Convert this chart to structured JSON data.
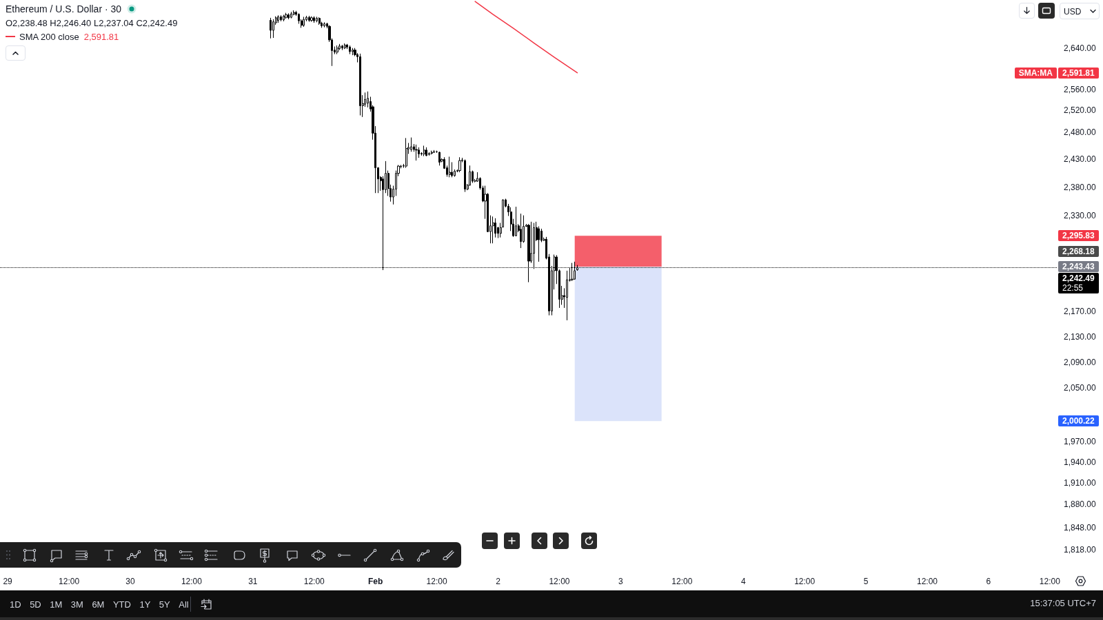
{
  "chart_data": {
    "type": "candlestick",
    "title": "Ethereum / U.S. Dollar · 30",
    "series": [
      {
        "color": "#000000",
        "x": [
          "--01-31T03:30",
          "--01-31T04:00",
          "--01-31T04:30",
          "--01-31T05:00",
          "--01-31T05:30",
          "--01-31T06:00",
          "--01-31T06:30",
          "--01-31T07:00",
          "--01-31T07:30",
          "--01-31T08:00",
          "--01-31T08:30",
          "--01-31T09:00",
          "--01-31T09:30",
          "--01-31T10:00",
          "--01-31T10:30",
          "--01-31T11:00",
          "--01-31T11:30",
          "--01-31T12:00",
          "--01-31T12:30",
          "--01-31T13:00",
          "--01-31T13:30",
          "--01-31T14:00",
          "--01-31T14:30",
          "--01-31T15:00",
          "--01-31T15:30",
          "--01-31T16:00",
          "--01-31T16:30",
          "--01-31T17:00",
          "--01-31T17:30",
          "--01-31T18:00",
          "--01-31T18:30",
          "--01-31T19:00",
          "--01-31T19:30",
          "--01-31T20:00",
          "--01-31T20:30",
          "--01-31T21:00",
          "--01-31T21:30",
          "--01-31T22:00",
          "--01-31T22:30",
          "--01-31T23:00",
          "--01-31T23:30",
          "--02-01T00:00",
          "--02-01T00:30",
          "--02-01T01:00",
          "--02-01T01:30",
          "--02-01T02:00",
          "--02-01T02:30",
          "--02-01T03:00",
          "--02-01T03:30",
          "--02-01T04:00",
          "--02-01T04:30",
          "--02-01T05:00",
          "--02-01T05:30",
          "--02-01T06:00",
          "--02-01T06:30",
          "--02-01T07:00",
          "--02-01T07:30",
          "--02-01T08:00",
          "--02-01T08:30",
          "--02-01T09:00",
          "--02-01T09:30",
          "--02-01T10:00",
          "--02-01T10:30",
          "--02-01T11:00",
          "--02-01T11:30",
          "--02-01T12:00",
          "--02-01T12:30",
          "--02-01T13:00",
          "--02-01T13:30",
          "--02-01T14:00",
          "--02-01T14:30",
          "--02-01T15:00",
          "--02-01T15:30",
          "--02-01T16:00",
          "--02-01T16:30",
          "--02-01T17:00",
          "--02-01T17:30",
          "--02-01T18:00",
          "--02-01T18:30",
          "--02-01T19:00",
          "--02-01T19:30",
          "--02-01T20:00",
          "--02-01T20:30",
          "--02-01T21:00",
          "--02-01T21:30",
          "--02-01T22:00",
          "--02-01T22:30",
          "--02-01T23:00",
          "--02-01T23:30",
          "--02-02T00:00",
          "--02-02T00:30",
          "--02-02T01:00",
          "--02-02T01:30",
          "--02-02T02:00",
          "--02-02T02:30",
          "--02-02T03:00",
          "--02-02T03:30",
          "--02-02T04:00",
          "--02-02T04:30",
          "--02-02T05:00",
          "--02-02T05:30",
          "--02-02T06:00",
          "--02-02T06:30",
          "--02-02T07:00",
          "--02-02T07:30",
          "--02-02T08:00",
          "--02-02T08:30",
          "--02-02T09:00",
          "--02-02T09:30",
          "--02-02T10:00",
          "--02-02T10:30",
          "--02-02T11:00",
          "--02-02T11:30",
          "--02-02T12:00",
          "--02-02T12:30",
          "--02-02T13:00",
          "--02-02T13:30",
          "--02-02T14:00",
          "--02-02T14:30",
          "--02-02T15:00",
          "--02-02T15:30"
        ],
        "ohlc": [
          [
            2695,
            2700,
            2659,
            2675
          ],
          [
            2675,
            2697,
            2660,
            2692
          ],
          [
            2690,
            2703,
            2686,
            2700
          ],
          [
            2695,
            2705,
            2690,
            2702
          ],
          [
            2702,
            2705,
            2693,
            2696
          ],
          [
            2696,
            2706,
            2693,
            2703
          ],
          [
            2701,
            2710,
            2698,
            2706
          ],
          [
            2706,
            2709,
            2697,
            2700
          ],
          [
            2701,
            2712,
            2699,
            2708
          ],
          [
            2707,
            2715,
            2705,
            2711
          ],
          [
            2711,
            2714,
            2704,
            2707
          ],
          [
            2707,
            2709,
            2688,
            2694
          ],
          [
            2694,
            2697,
            2680,
            2685
          ],
          [
            2685,
            2702,
            2682,
            2697
          ],
          [
            2696,
            2704,
            2693,
            2701
          ],
          [
            2701,
            2704,
            2692,
            2695
          ],
          [
            2695,
            2703,
            2692,
            2700
          ],
          [
            2700,
            2703,
            2690,
            2694
          ],
          [
            2694,
            2702,
            2691,
            2699
          ],
          [
            2699,
            2701,
            2686,
            2689
          ],
          [
            2689,
            2692,
            2680,
            2684
          ],
          [
            2684,
            2691,
            2681,
            2688
          ],
          [
            2688,
            2690,
            2679,
            2683
          ],
          [
            2683,
            2685,
            2652,
            2656
          ],
          [
            2656,
            2659,
            2605,
            2635
          ],
          [
            2636,
            2643,
            2628,
            2632
          ],
          [
            2632,
            2645,
            2628,
            2640
          ],
          [
            2639,
            2648,
            2636,
            2644
          ],
          [
            2644,
            2646,
            2636,
            2640
          ],
          [
            2640,
            2649,
            2638,
            2646
          ],
          [
            2646,
            2648,
            2638,
            2642
          ],
          [
            2642,
            2645,
            2628,
            2633
          ],
          [
            2633,
            2640,
            2626,
            2636
          ],
          [
            2636,
            2640,
            2624,
            2627
          ],
          [
            2627,
            2630,
            2612,
            2623
          ],
          [
            2623,
            2629,
            2511,
            2529
          ],
          [
            2529,
            2549,
            2508,
            2533
          ],
          [
            2532,
            2554,
            2527,
            2541
          ],
          [
            2534,
            2556,
            2526,
            2543
          ],
          [
            2537,
            2546,
            2518,
            2523
          ],
          [
            2527,
            2530,
            2466,
            2478
          ],
          [
            2478,
            2491,
            2370,
            2415
          ],
          [
            2415,
            2416,
            2370,
            2395
          ],
          [
            2398,
            2400,
            2374,
            2392
          ],
          [
            2395,
            2400,
            2238,
            2376
          ],
          [
            2376,
            2427,
            2370,
            2405
          ],
          [
            2405,
            2410,
            2365,
            2378
          ],
          [
            2378,
            2385,
            2355,
            2363
          ],
          [
            2363,
            2383,
            2350,
            2377
          ],
          [
            2377,
            2410,
            2365,
            2405
          ],
          [
            2405,
            2420,
            2400,
            2418
          ],
          [
            2417,
            2420,
            2414,
            2418
          ],
          [
            2418,
            2422,
            2415,
            2419
          ],
          [
            2418,
            2469,
            2415,
            2450
          ],
          [
            2449,
            2460,
            2440,
            2452
          ],
          [
            2448,
            2470,
            2444,
            2453
          ],
          [
            2453,
            2458,
            2444,
            2448
          ],
          [
            2448,
            2457,
            2428,
            2447
          ],
          [
            2447,
            2452,
            2433,
            2440
          ],
          [
            2441,
            2443,
            2437,
            2440
          ],
          [
            2440,
            2455,
            2436,
            2447
          ],
          [
            2447,
            2452,
            2436,
            2437
          ],
          [
            2439,
            2443,
            2437,
            2441
          ],
          [
            2441,
            2446,
            2439,
            2443
          ],
          [
            2443,
            2447,
            2442,
            2444
          ],
          [
            2444,
            2446,
            2442,
            2444
          ],
          [
            2443,
            2444,
            2419,
            2425
          ],
          [
            2427,
            2432,
            2425,
            2430
          ],
          [
            2430,
            2434,
            2413,
            2414
          ],
          [
            2415,
            2419,
            2399,
            2403
          ],
          [
            2403,
            2435,
            2398,
            2407
          ],
          [
            2407,
            2425,
            2398,
            2401
          ],
          [
            2401,
            2412,
            2399,
            2409
          ],
          [
            2409,
            2412,
            2407,
            2410
          ],
          [
            2410,
            2434,
            2407,
            2428
          ],
          [
            2428,
            2433,
            2425,
            2429
          ],
          [
            2428,
            2430,
            2372,
            2377
          ],
          [
            2377,
            2386,
            2375,
            2384
          ],
          [
            2384,
            2419,
            2383,
            2408
          ],
          [
            2408,
            2410,
            2388,
            2391
          ],
          [
            2391,
            2395,
            2389,
            2392
          ],
          [
            2391,
            2407,
            2390,
            2396
          ],
          [
            2396,
            2398,
            2376,
            2379
          ],
          [
            2379,
            2383,
            2354,
            2356
          ],
          [
            2356,
            2383,
            2325,
            2368
          ],
          [
            2368,
            2370,
            2302,
            2303
          ],
          [
            2303,
            2331,
            2283,
            2313
          ],
          [
            2313,
            2329,
            2283,
            2318
          ],
          [
            2318,
            2326,
            2293,
            2300
          ],
          [
            2310,
            2311,
            2292,
            2300
          ],
          [
            2300,
            2318,
            2293,
            2310
          ],
          [
            2311,
            2359,
            2310,
            2358
          ],
          [
            2358,
            2360,
            2345,
            2347
          ],
          [
            2347,
            2351,
            2330,
            2337
          ],
          [
            2337,
            2345,
            2304,
            2316
          ],
          [
            2316,
            2325,
            2294,
            2296
          ],
          [
            2296,
            2346,
            2295,
            2313
          ],
          [
            2313,
            2316,
            2302,
            2305
          ],
          [
            2307,
            2334,
            2275,
            2286
          ],
          [
            2286,
            2331,
            2284,
            2312
          ],
          [
            2312,
            2316,
            2311,
            2314
          ],
          [
            2314,
            2316,
            2218,
            2253
          ],
          [
            2253,
            2320,
            2250,
            2266
          ],
          [
            2266,
            2318,
            2240,
            2310
          ],
          [
            2310,
            2320,
            2287,
            2289
          ],
          [
            2308,
            2312,
            2252,
            2289
          ],
          [
            2304,
            2308,
            2285,
            2288
          ],
          [
            2288,
            2293,
            2287,
            2290
          ],
          [
            2290,
            2294,
            2256,
            2258
          ],
          [
            2260,
            2265,
            2164,
            2171
          ],
          [
            2171,
            2245,
            2164,
            2237
          ],
          [
            2237,
            2264,
            2206,
            2260
          ],
          [
            2260,
            2263,
            2215,
            2237
          ],
          [
            2237,
            2239,
            2176,
            2190
          ],
          [
            2190,
            2212,
            2181,
            2196
          ],
          [
            2196,
            2208,
            2176,
            2194
          ],
          [
            2193,
            2237,
            2156,
            2222
          ],
          [
            2222,
            2242,
            2219,
            2221
          ],
          [
            2222,
            2250,
            2220,
            2223
          ],
          [
            2223,
            2252,
            2222,
            2237
          ],
          [
            2238.48,
            2246.4,
            2237.04,
            2242.49
          ]
        ]
      },
      {
        "type": "line",
        "name": "SMA 200 close",
        "color": "#f23645",
        "x": [
          "--02-01T19:30",
          "--02-01T23:00",
          "--02-02T03:00",
          "--02-02T07:00",
          "--02-02T11:00",
          "--02-02T15:30"
        ],
        "values": [
          2733,
          2707,
          2679,
          2650,
          2622,
          2591.81
        ]
      },
      {
        "type": "bar",
        "color": "#f45f6b",
        "x": [
          "--02-02T23:30"
        ],
        "base": [
          2243.43
        ],
        "values": [
          52.4
        ]
      },
      {
        "type": "bar",
        "color": "#dbe3fa",
        "x": [
          "--02-02T23:30"
        ],
        "base": [
          2000.22
        ],
        "values": [
          243.21
        ]
      }
    ],
    "xlim": [
      "--01-28T22:30",
      "--02-06T13:30"
    ],
    "xticks": [
      {
        "value": "--01-29",
        "label": "29"
      },
      {
        "value": "--01-29T12:00",
        "label": "12:00"
      },
      {
        "value": "--01-30",
        "label": "30"
      },
      {
        "value": "--01-30T12:00",
        "label": "12:00"
      },
      {
        "value": "--01-31",
        "label": "31"
      },
      {
        "value": "--01-31T12:00",
        "label": "12:00"
      },
      {
        "value": "--02-01",
        "label": "Feb"
      },
      {
        "value": "--02-01T12:00",
        "label": "12:00"
      },
      {
        "value": "--02-02",
        "label": "2"
      },
      {
        "value": "--02-02T12:00",
        "label": "12:00"
      },
      {
        "value": "--02-03",
        "label": "3"
      },
      {
        "value": "--02-03T12:00",
        "label": "12:00"
      },
      {
        "value": "--02-04",
        "label": "4"
      },
      {
        "value": "--02-04T12:00",
        "label": "12:00"
      },
      {
        "value": "--02-05",
        "label": "5"
      },
      {
        "value": "--02-05T12:00",
        "label": "12:00"
      },
      {
        "value": "--02-06",
        "label": "6"
      },
      {
        "value": "--02-06T12:00",
        "label": "12:00"
      }
    ],
    "ylim": [
      1790,
      2736
    ],
    "yticks": [
      {
        "value": 1818,
        "label": "1,818.00"
      },
      {
        "value": 1848,
        "label": "1,848.00"
      },
      {
        "value": 1880,
        "label": "1,880.00"
      },
      {
        "value": 1910,
        "label": "1,910.00"
      },
      {
        "value": 1940,
        "label": "1,940.00"
      },
      {
        "value": 1970,
        "label": "1,970.00"
      },
      {
        "value": 2050,
        "label": "2,050.00"
      },
      {
        "value": 2090,
        "label": "2,090.00"
      },
      {
        "value": 2130,
        "label": "2,130.00"
      },
      {
        "value": 2170,
        "label": "2,170.00"
      },
      {
        "value": 2330,
        "label": "2,330.00"
      },
      {
        "value": 2380,
        "label": "2,380.00"
      },
      {
        "value": 2430,
        "label": "2,430.00"
      },
      {
        "value": 2480,
        "label": "2,480.00"
      },
      {
        "value": 2520,
        "label": "2,520.00"
      },
      {
        "value": 2560,
        "label": "2,560.00"
      },
      {
        "value": 2640,
        "label": "2,640.00"
      }
    ],
    "log": true,
    "legend": "top left",
    "ref_lines": [
      {
        "axis": "y",
        "value": 2242.49,
        "label": "2,242.49",
        "line_style": "dotted",
        "color": "#000000"
      }
    ],
    "annotations": [
      "O2,238.48 H2,246.40 L2,237.04 C2,242.49",
      "2,591.81",
      "SMA:MA",
      "2,591.81",
      "2,295.83",
      "2,268.18",
      "2,243.43",
      "2,000.22",
      "22:55",
      "USD",
      "1D",
      "5D",
      "1M",
      "3M",
      "6M",
      "YTD",
      "1Y",
      "5Y",
      "All",
      "15:37:05 UTC+7"
    ]
  }
}
